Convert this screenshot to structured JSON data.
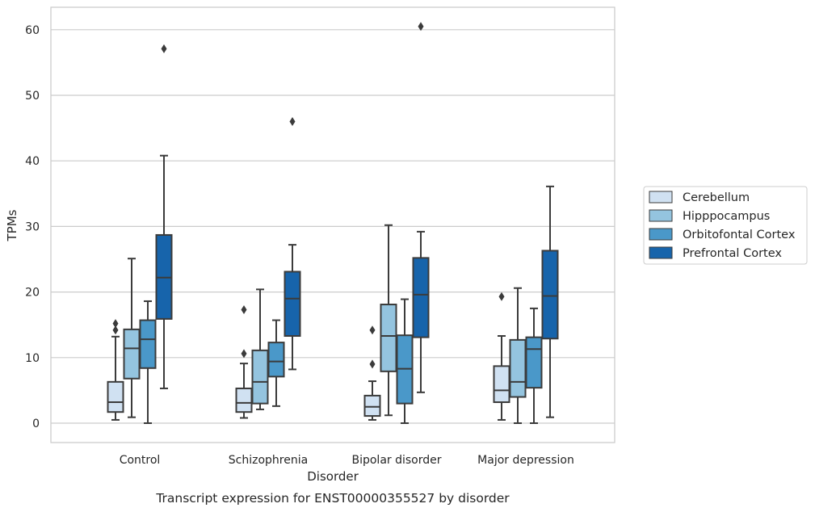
{
  "chart_data": {
    "type": "boxplot",
    "title": "Transcript expression for ENST00000355527 by disorder",
    "xlabel": "Disorder",
    "ylabel": "TPMs",
    "ylim": [
      -3,
      63.5
    ],
    "yticks": [
      0,
      10,
      20,
      30,
      40,
      50,
      60
    ],
    "grid": "horizontal",
    "legend_position": "right",
    "categories": [
      "Control",
      "Schizophrenia",
      "Bipolar disorder",
      "Major depression"
    ],
    "series": [
      {
        "name": "Cerebellum",
        "color": "#d0e1f2",
        "boxes": [
          {
            "whislo": 0.5,
            "q1": 1.7,
            "med": 3.2,
            "q3": 6.3,
            "whishi": 13.2,
            "fliers": [
              14.2,
              15.2
            ]
          },
          {
            "whislo": 0.8,
            "q1": 1.7,
            "med": 3.1,
            "q3": 5.3,
            "whishi": 9.1,
            "fliers": [
              10.6,
              17.3
            ]
          },
          {
            "whislo": 0.5,
            "q1": 1.1,
            "med": 2.5,
            "q3": 4.2,
            "whishi": 6.4,
            "fliers": [
              9.0,
              14.2
            ]
          },
          {
            "whislo": 0.5,
            "q1": 3.2,
            "med": 5.0,
            "q3": 8.7,
            "whishi": 13.3,
            "fliers": [
              19.3
            ]
          }
        ]
      },
      {
        "name": "Hipppocampus",
        "color": "#94c4df",
        "boxes": [
          {
            "whislo": 0.9,
            "q1": 6.8,
            "med": 11.4,
            "q3": 14.3,
            "whishi": 25.1,
            "fliers": []
          },
          {
            "whislo": 2.1,
            "q1": 3.0,
            "med": 6.3,
            "q3": 11.1,
            "whishi": 20.4,
            "fliers": []
          },
          {
            "whislo": 1.2,
            "q1": 7.9,
            "med": 13.3,
            "q3": 18.1,
            "whishi": 30.2,
            "fliers": []
          },
          {
            "whislo": 0.0,
            "q1": 4.0,
            "med": 6.3,
            "q3": 12.7,
            "whishi": 20.6,
            "fliers": []
          }
        ]
      },
      {
        "name": "Orbitofontal Cortex",
        "color": "#4a98c9",
        "boxes": [
          {
            "whislo": 0.0,
            "q1": 8.4,
            "med": 12.8,
            "q3": 15.7,
            "whishi": 18.6,
            "fliers": []
          },
          {
            "whislo": 2.6,
            "q1": 7.1,
            "med": 9.4,
            "q3": 12.3,
            "whishi": 15.7,
            "fliers": []
          },
          {
            "whislo": 0.0,
            "q1": 3.0,
            "med": 8.3,
            "q3": 13.4,
            "whishi": 18.9,
            "fliers": []
          },
          {
            "whislo": 0.0,
            "q1": 5.4,
            "med": 11.3,
            "q3": 13.1,
            "whishi": 17.5,
            "fliers": []
          }
        ]
      },
      {
        "name": "Prefrontal Cortex",
        "color": "#1764ab",
        "boxes": [
          {
            "whislo": 5.3,
            "q1": 15.9,
            "med": 22.2,
            "q3": 28.7,
            "whishi": 40.8,
            "fliers": [
              57.1
            ]
          },
          {
            "whislo": 8.2,
            "q1": 13.3,
            "med": 19.0,
            "q3": 23.1,
            "whishi": 27.2,
            "fliers": [
              46.0
            ]
          },
          {
            "whislo": 4.7,
            "q1": 13.1,
            "med": 19.6,
            "q3": 25.2,
            "whishi": 29.2,
            "fliers": [
              60.5
            ]
          },
          {
            "whislo": 0.9,
            "q1": 12.9,
            "med": 19.4,
            "q3": 26.3,
            "whishi": 36.1,
            "fliers": []
          }
        ]
      }
    ]
  }
}
